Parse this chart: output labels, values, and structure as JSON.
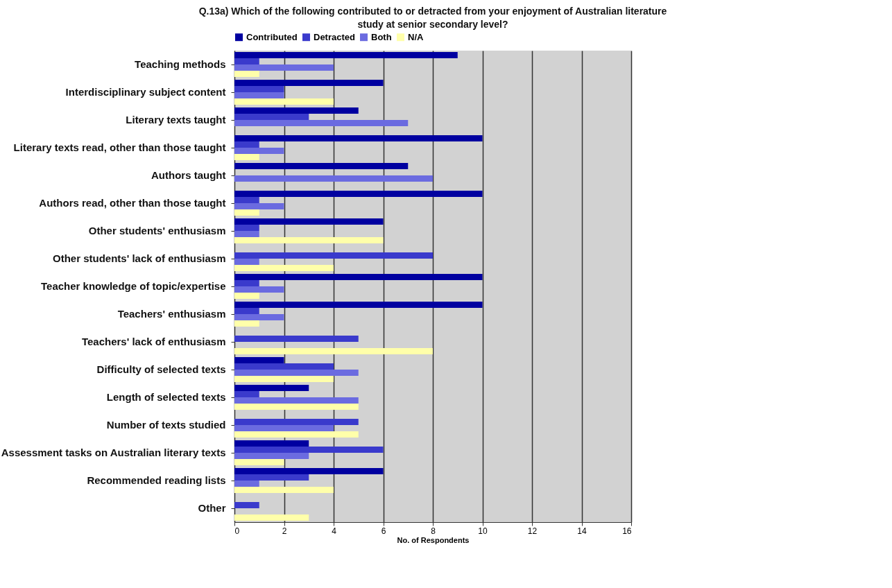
{
  "chart_data": {
    "type": "bar",
    "orientation": "horizontal",
    "title": "Q.13a)  Which of the following contributed to or detracted from your enjoyment of Australian literature study at senior secondary level?",
    "xlabel": "No. of Respondents",
    "categories": [
      "Teaching methods",
      "Interdisciplinary subject content",
      "Literary texts taught",
      "Literary texts read, other than those taught",
      "Authors taught",
      "Authors read, other than those taught",
      "Other students' enthusiasm",
      "Other students' lack of enthusiasm",
      "Teacher knowledge of topic/expertise",
      "Teachers' enthusiasm",
      "Teachers' lack of enthusiasm",
      "Difficulty of selected texts",
      "Length of selected texts",
      "Number of texts studied",
      "Assessment tasks on Australian literary texts",
      "Recommended reading lists",
      "Other"
    ],
    "series": [
      {
        "name": "Contributed",
        "color": "#0000a0",
        "values": [
          9,
          6,
          5,
          10,
          7,
          10,
          6,
          0,
          10,
          10,
          0,
          2,
          3,
          0,
          3,
          6,
          0
        ]
      },
      {
        "name": "Detracted",
        "color": "#3a3acc",
        "values": [
          1,
          2,
          3,
          1,
          0,
          1,
          1,
          8,
          1,
          1,
          5,
          4,
          1,
          5,
          6,
          3,
          1
        ]
      },
      {
        "name": "Both",
        "color": "#6b6be0",
        "values": [
          4,
          2,
          7,
          2,
          8,
          2,
          1,
          1,
          2,
          2,
          0,
          5,
          5,
          4,
          3,
          1,
          0
        ]
      },
      {
        "name": "N/A",
        "color": "#ffffaa",
        "values": [
          1,
          4,
          0,
          1,
          0,
          1,
          6,
          4,
          1,
          1,
          8,
          4,
          5,
          5,
          2,
          4,
          3
        ]
      }
    ],
    "xlim": [
      0,
      16
    ],
    "xticks": [
      0,
      2,
      4,
      6,
      8,
      10,
      12,
      14,
      16
    ],
    "grid": "x",
    "legend": "top"
  }
}
